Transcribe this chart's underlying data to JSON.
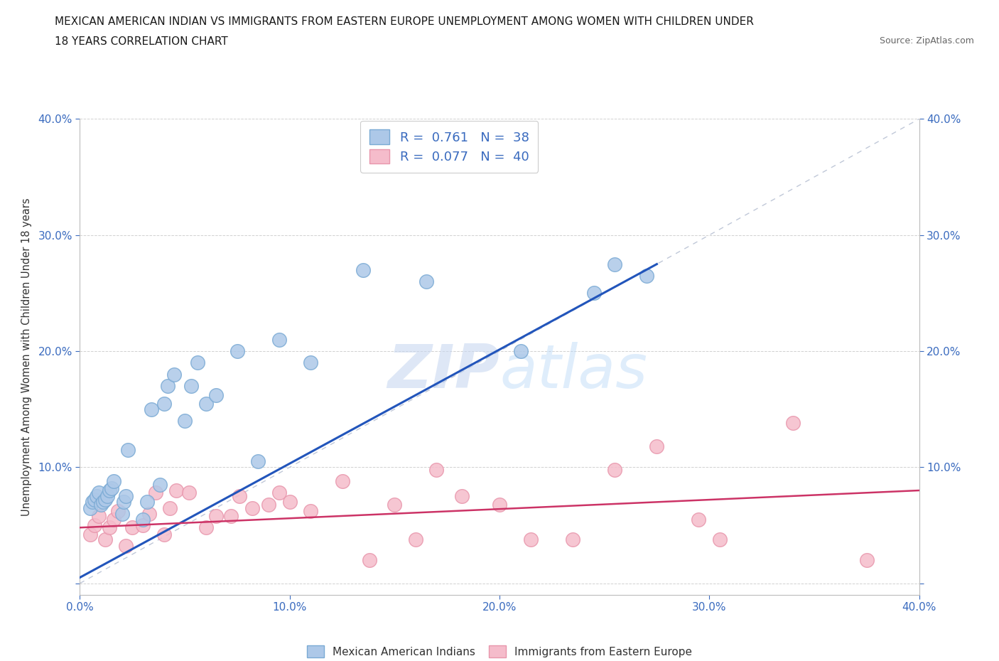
{
  "title_line1": "MEXICAN AMERICAN INDIAN VS IMMIGRANTS FROM EASTERN EUROPE UNEMPLOYMENT AMONG WOMEN WITH CHILDREN UNDER",
  "title_line2": "18 YEARS CORRELATION CHART",
  "source": "Source: ZipAtlas.com",
  "ylabel": "Unemployment Among Women with Children Under 18 years",
  "xlim": [
    0.0,
    0.4
  ],
  "ylim": [
    -0.01,
    0.4
  ],
  "xticks": [
    0.0,
    0.1,
    0.2,
    0.3,
    0.4
  ],
  "yticks": [
    0.0,
    0.1,
    0.2,
    0.3,
    0.4
  ],
  "xticklabels": [
    "0.0%",
    "10.0%",
    "20.0%",
    "30.0%",
    "40.0%"
  ],
  "yticklabels_left": [
    "",
    "10.0%",
    "20.0%",
    "30.0%",
    "40.0%"
  ],
  "yticklabels_right": [
    "",
    "10.0%",
    "20.0%",
    "30.0%",
    "40.0%"
  ],
  "blue_R": 0.761,
  "blue_N": 38,
  "pink_R": 0.077,
  "pink_N": 40,
  "blue_color": "#adc8e8",
  "blue_edge": "#7aaad4",
  "pink_color": "#f5bccb",
  "pink_edge": "#e896ac",
  "blue_line_color": "#2255bb",
  "pink_line_color": "#cc3366",
  "diag_line_color": "#c0c8d8",
  "watermark_zip": "ZIP",
  "watermark_atlas": "atlas",
  "blue_scatter_x": [
    0.005,
    0.006,
    0.007,
    0.008,
    0.009,
    0.01,
    0.011,
    0.012,
    0.013,
    0.014,
    0.015,
    0.016,
    0.02,
    0.021,
    0.022,
    0.023,
    0.03,
    0.032,
    0.034,
    0.038,
    0.04,
    0.042,
    0.045,
    0.05,
    0.053,
    0.056,
    0.06,
    0.065,
    0.075,
    0.085,
    0.095,
    0.11,
    0.135,
    0.165,
    0.21,
    0.245,
    0.255,
    0.27
  ],
  "blue_scatter_y": [
    0.065,
    0.07,
    0.072,
    0.075,
    0.078,
    0.068,
    0.07,
    0.072,
    0.075,
    0.08,
    0.082,
    0.088,
    0.06,
    0.07,
    0.075,
    0.115,
    0.055,
    0.07,
    0.15,
    0.085,
    0.155,
    0.17,
    0.18,
    0.14,
    0.17,
    0.19,
    0.155,
    0.162,
    0.2,
    0.105,
    0.21,
    0.19,
    0.27,
    0.26,
    0.2,
    0.25,
    0.275,
    0.265
  ],
  "pink_scatter_x": [
    0.005,
    0.007,
    0.009,
    0.012,
    0.014,
    0.016,
    0.018,
    0.022,
    0.025,
    0.03,
    0.033,
    0.036,
    0.04,
    0.043,
    0.046,
    0.052,
    0.06,
    0.065,
    0.072,
    0.076,
    0.082,
    0.09,
    0.095,
    0.1,
    0.11,
    0.125,
    0.138,
    0.15,
    0.16,
    0.17,
    0.182,
    0.2,
    0.215,
    0.235,
    0.255,
    0.275,
    0.295,
    0.305,
    0.34,
    0.375
  ],
  "pink_scatter_y": [
    0.042,
    0.05,
    0.058,
    0.038,
    0.048,
    0.055,
    0.062,
    0.032,
    0.048,
    0.05,
    0.06,
    0.078,
    0.042,
    0.065,
    0.08,
    0.078,
    0.048,
    0.058,
    0.058,
    0.075,
    0.065,
    0.068,
    0.078,
    0.07,
    0.062,
    0.088,
    0.02,
    0.068,
    0.038,
    0.098,
    0.075,
    0.068,
    0.038,
    0.038,
    0.098,
    0.118,
    0.055,
    0.038,
    0.138,
    0.02
  ],
  "blue_line_x": [
    0.0,
    0.275
  ],
  "blue_line_y": [
    0.005,
    0.275
  ],
  "pink_line_x": [
    0.0,
    0.4
  ],
  "pink_line_y": [
    0.048,
    0.08
  ]
}
